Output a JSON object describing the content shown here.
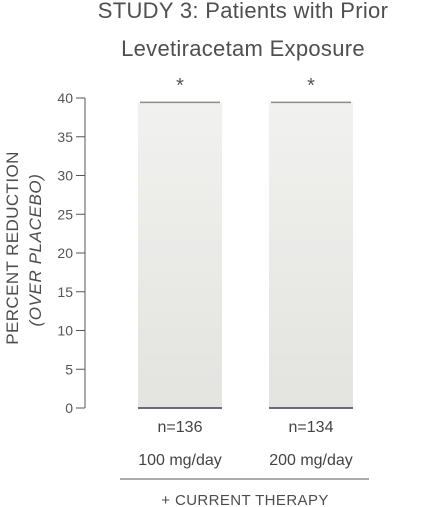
{
  "chart_data": {
    "type": "bar",
    "title_lines": [
      "STUDY 3: Patients with Prior",
      "Levetiracetam Exposure"
    ],
    "ylabel_lines": [
      "PERCENT REDUCTION",
      "(OVER PLACEBO)"
    ],
    "ylim": [
      0,
      40
    ],
    "yticks": [
      0,
      5,
      10,
      15,
      20,
      25,
      30,
      35,
      40
    ],
    "categories": [
      {
        "n": "n=136",
        "dose": "100 mg/day"
      },
      {
        "n": "n=134",
        "dose": "200 mg/day"
      }
    ],
    "values": [
      39.5,
      39.5
    ],
    "annotations": [
      "*",
      "*"
    ],
    "group_label": "+ CURRENT THERAPY",
    "grid": false,
    "colors": {
      "bar_top": "#f1f1ef",
      "bar_bottom": "#e3e3e0",
      "bar_cap": "#8c8c8c",
      "baseline": "#6b6b78",
      "axis": "#555555"
    }
  }
}
